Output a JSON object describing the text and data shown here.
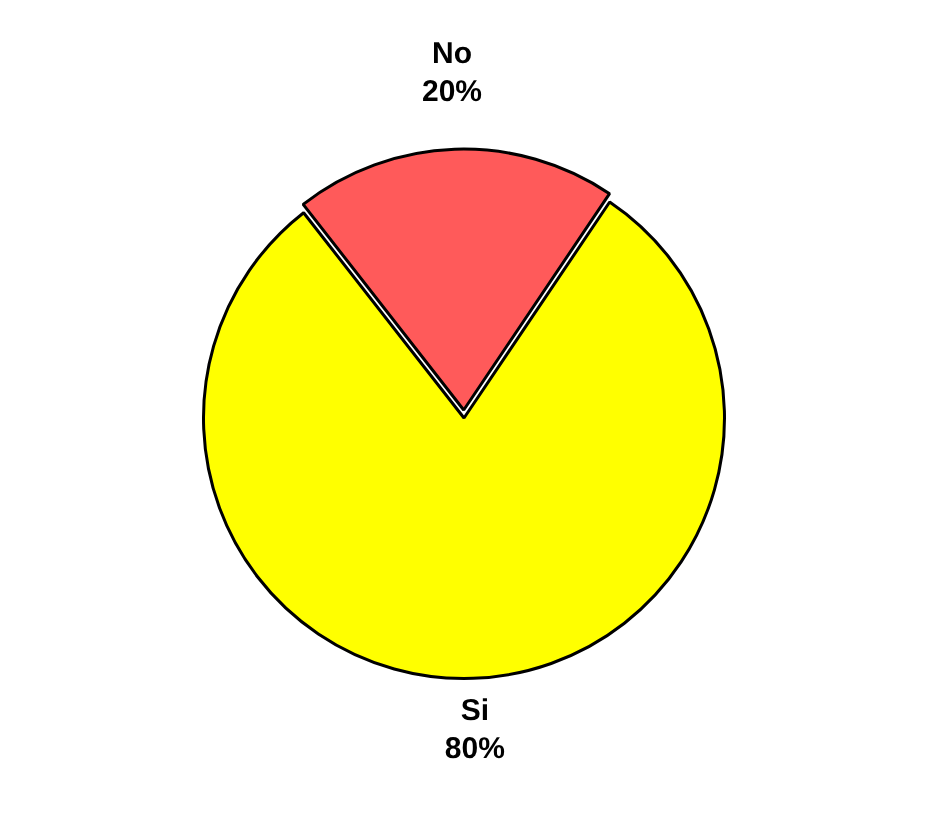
{
  "chart_data": {
    "type": "pie",
    "categories": [
      "No",
      "Si"
    ],
    "values": [
      20,
      80
    ],
    "colors": [
      "#ff5a5a",
      "#ffff00"
    ],
    "value_labels": [
      "20%",
      "80%"
    ]
  }
}
